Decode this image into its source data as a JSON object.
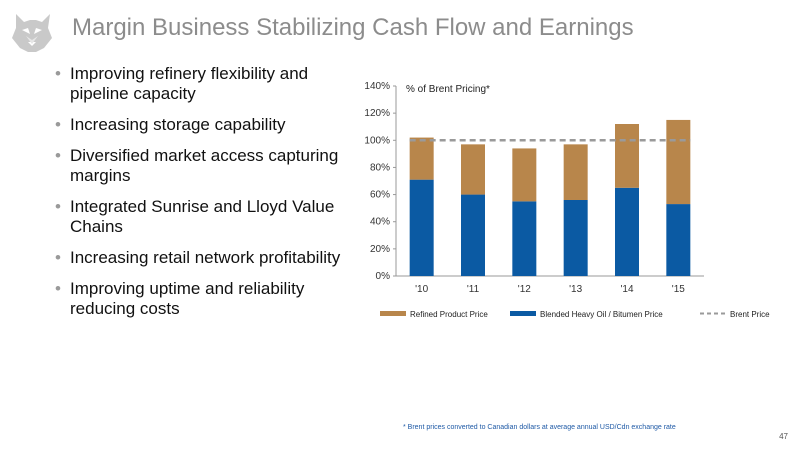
{
  "slide": {
    "title": "Margin Business Stabilizing Cash Flow and Earnings",
    "bullets": [
      "Improving refinery flexibility and pipeline capacity",
      "Increasing storage capability",
      "Diversified market access capturing margins",
      "Integrated Sunrise and Lloyd Value Chains",
      "Increasing retail network profitability",
      "Improving uptime and reliability reducing costs"
    ],
    "footnote": "* Brent prices converted to Canadian dollars at average annual USD/Cdn exchange rate",
    "page_number": "47",
    "logo_icon": "husky-dog-logo-icon"
  },
  "chart_data": {
    "type": "bar",
    "stacked": true,
    "annotation": "% of Brent Pricing*",
    "categories": [
      "'10",
      "'11",
      "'12",
      "'13",
      "'14",
      "'15"
    ],
    "series": [
      {
        "name": "Blended Heavy Oil / Bitumen Price",
        "values": [
          71,
          60,
          55,
          56,
          65,
          53
        ],
        "color": "#0b5aa3"
      },
      {
        "name": "Refined Product Price",
        "values": [
          31,
          37,
          39,
          41,
          47,
          62
        ],
        "color": "#b8864b"
      }
    ],
    "reference_line": {
      "name": "Brent Price",
      "value": 100,
      "color": "#9a9a9a",
      "style": "dashed"
    },
    "ylim": [
      0,
      140
    ],
    "yticks": [
      "0%",
      "20%",
      "40%",
      "60%",
      "80%",
      "100%",
      "120%",
      "140%"
    ],
    "ytick_values": [
      0,
      20,
      40,
      60,
      80,
      100,
      120,
      140
    ],
    "legend": [
      {
        "label": "Refined Product Price",
        "color": "#b8864b",
        "kind": "box"
      },
      {
        "label": "Blended Heavy Oil / Bitumen Price",
        "color": "#0b5aa3",
        "kind": "box"
      },
      {
        "label": "Brent Price",
        "color": "#9a9a9a",
        "kind": "dash"
      }
    ],
    "legend_position": "bottom",
    "grid": false
  }
}
